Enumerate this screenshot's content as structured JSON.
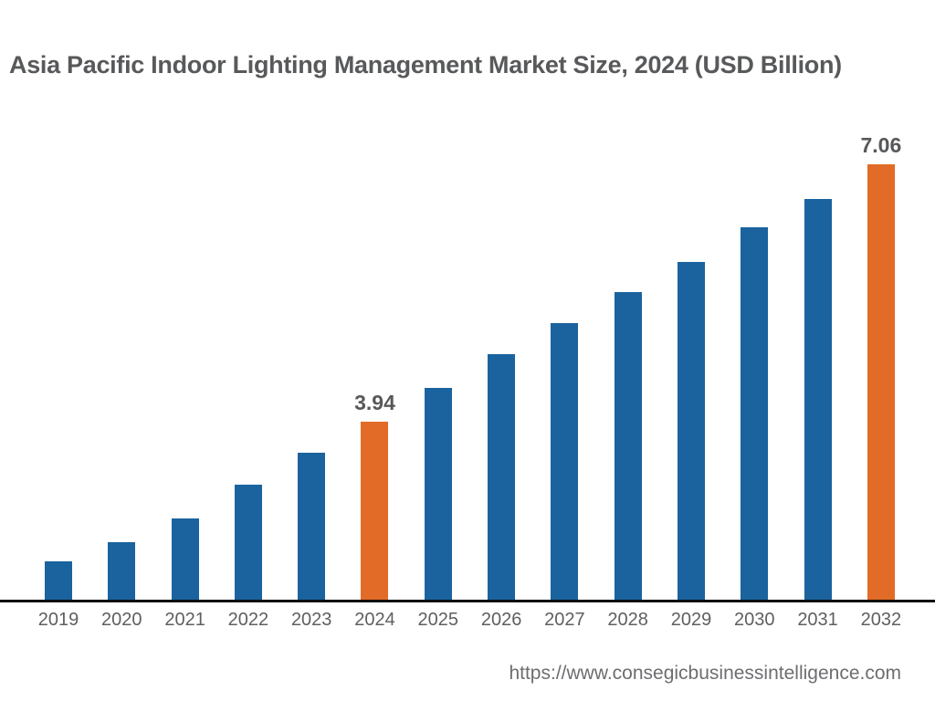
{
  "title": "Asia Pacific Indoor Lighting Management Market Size, 2024 (USD Billion)",
  "footer": {
    "url": "https://www.consegicbusinessintelligence.com"
  },
  "chart_data": {
    "type": "bar",
    "title": "Asia Pacific Indoor Lighting Management Market Size, 2024 (USD Billion)",
    "xlabel": "",
    "ylabel": "",
    "unit": "USD Billion",
    "grid": false,
    "legend": "none",
    "y_axis_visible": false,
    "categories": [
      "2019",
      "2020",
      "2021",
      "2022",
      "2023",
      "2024",
      "2025",
      "2026",
      "2027",
      "2028",
      "2029",
      "2030",
      "2031",
      "2032"
    ],
    "values": [
      2.25,
      2.48,
      2.77,
      3.18,
      3.56,
      3.94,
      4.35,
      4.76,
      5.14,
      5.51,
      5.88,
      6.3,
      6.64,
      7.06
    ],
    "labeled_categories": [
      "2024",
      "2032"
    ],
    "data_labels": {
      "2024": "3.94",
      "2032": "7.06"
    },
    "highlight_categories": [
      "2024",
      "2032"
    ],
    "colors": {
      "bar": "#1A639E",
      "highlight": "#E26B27",
      "data_label": "#57585A",
      "tick_label": "#5E5F61",
      "axis_line": "#0E0E0E",
      "title": "#58595B",
      "url": "#6D6E71"
    }
  }
}
